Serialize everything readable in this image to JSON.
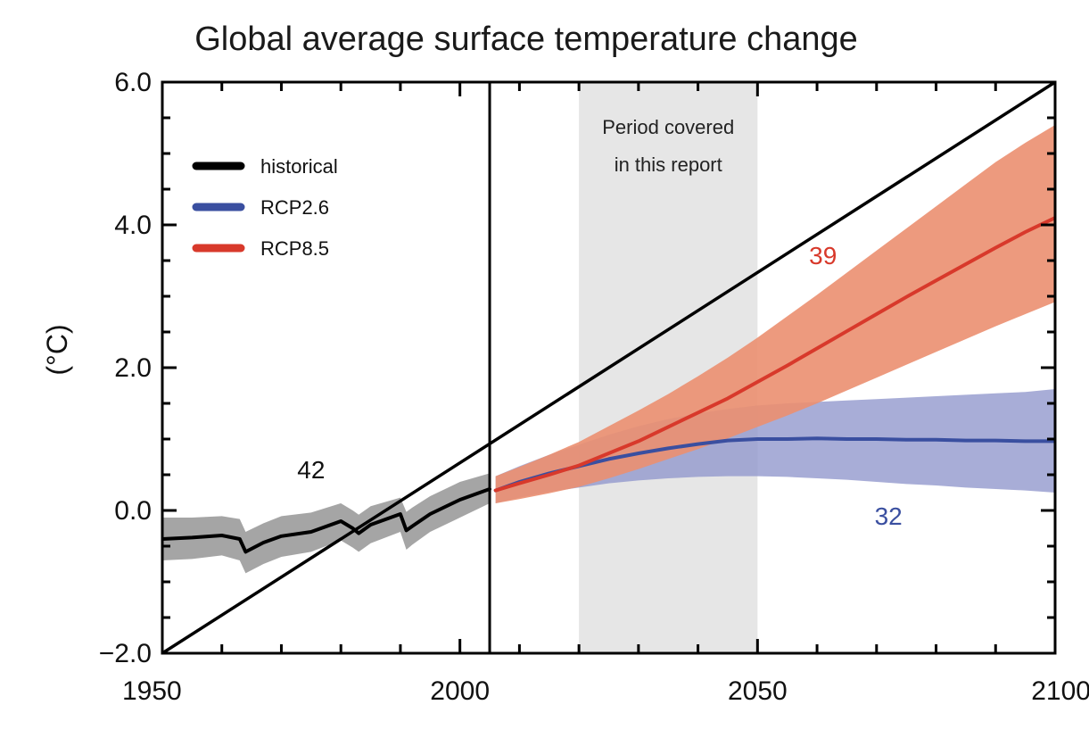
{
  "chart_data": {
    "type": "line",
    "title": "Global average surface temperature change",
    "ylabel": "(°C)",
    "xlabel": "",
    "xlim": [
      1950,
      2100
    ],
    "ylim": [
      -2.0,
      6.0
    ],
    "x_ticks": [
      1950,
      2000,
      2050,
      2100
    ],
    "y_ticks": [
      -2.0,
      0.0,
      2.0,
      4.0,
      6.0
    ],
    "y_tick_labels": [
      "−2.0",
      "0.0",
      "2.0",
      "4.0",
      "6.0"
    ],
    "x_tick_labels": [
      "1950",
      "2000",
      "2050",
      "2100"
    ],
    "legend": {
      "placement": "top-left",
      "entries": [
        {
          "name": "historical",
          "color": "#000000"
        },
        {
          "name": "RCP2.6",
          "color": "#3a4fa0"
        },
        {
          "name": "RCP8.5",
          "color": "#d8392b"
        }
      ]
    },
    "shaded_period": {
      "x_start": 2020,
      "x_end": 2050,
      "label_line1": "Period covered",
      "label_line2": "in this report",
      "color": "#e6e6e6"
    },
    "divider_year": 2005,
    "series": [
      {
        "name": "historical",
        "color": "#000000",
        "band_color": "#9b9b9b",
        "x": [
          1950,
          1955,
          1960,
          1963,
          1964,
          1967,
          1970,
          1975,
          1980,
          1982,
          1983,
          1985,
          1990,
          1991,
          1992,
          1995,
          2000,
          2005
        ],
        "y": [
          -0.4,
          -0.38,
          -0.35,
          -0.4,
          -0.58,
          -0.45,
          -0.36,
          -0.3,
          -0.15,
          -0.25,
          -0.32,
          -0.2,
          -0.05,
          -0.28,
          -0.22,
          -0.05,
          0.15,
          0.3
        ],
        "lower": [
          -0.7,
          -0.68,
          -0.63,
          -0.7,
          -0.88,
          -0.75,
          -0.65,
          -0.58,
          -0.42,
          -0.52,
          -0.58,
          -0.46,
          -0.3,
          -0.55,
          -0.48,
          -0.3,
          -0.1,
          0.1
        ],
        "upper": [
          -0.1,
          -0.1,
          -0.08,
          -0.12,
          -0.3,
          -0.18,
          -0.08,
          -0.03,
          0.1,
          0.0,
          -0.06,
          0.06,
          0.18,
          -0.02,
          0.04,
          0.2,
          0.4,
          0.52
        ],
        "annotation": {
          "text": "42",
          "x": 1975,
          "y": 0.45
        }
      },
      {
        "name": "RCP2.6",
        "color": "#3a4fa0",
        "band_color": "#8f96cc",
        "x": [
          2006,
          2010,
          2015,
          2020,
          2025,
          2030,
          2035,
          2040,
          2045,
          2050,
          2055,
          2060,
          2065,
          2070,
          2075,
          2080,
          2085,
          2090,
          2095,
          2100
        ],
        "y": [
          0.28,
          0.4,
          0.52,
          0.62,
          0.72,
          0.8,
          0.87,
          0.93,
          0.98,
          1.0,
          1.0,
          1.01,
          1.0,
          1.0,
          0.99,
          0.99,
          0.98,
          0.98,
          0.97,
          0.97
        ],
        "lower": [
          0.1,
          0.18,
          0.26,
          0.32,
          0.38,
          0.42,
          0.45,
          0.47,
          0.48,
          0.48,
          0.47,
          0.45,
          0.43,
          0.4,
          0.37,
          0.35,
          0.32,
          0.3,
          0.28,
          0.25
        ],
        "upper": [
          0.48,
          0.62,
          0.78,
          0.92,
          1.06,
          1.18,
          1.28,
          1.36,
          1.42,
          1.47,
          1.5,
          1.52,
          1.54,
          1.56,
          1.58,
          1.6,
          1.62,
          1.64,
          1.66,
          1.7
        ],
        "annotation": {
          "text": "32",
          "x": 2072,
          "y": -0.2
        }
      },
      {
        "name": "RCP8.5",
        "color": "#d8392b",
        "band_color": "#eb8f70",
        "x": [
          2006,
          2010,
          2015,
          2020,
          2025,
          2030,
          2035,
          2040,
          2045,
          2050,
          2055,
          2060,
          2065,
          2070,
          2075,
          2080,
          2085,
          2090,
          2095,
          2100
        ],
        "y": [
          0.28,
          0.38,
          0.5,
          0.63,
          0.8,
          0.97,
          1.17,
          1.37,
          1.57,
          1.8,
          2.03,
          2.27,
          2.51,
          2.75,
          2.99,
          3.22,
          3.45,
          3.68,
          3.9,
          4.1
        ],
        "lower": [
          0.1,
          0.16,
          0.24,
          0.33,
          0.45,
          0.58,
          0.72,
          0.86,
          1.01,
          1.17,
          1.33,
          1.5,
          1.68,
          1.86,
          2.04,
          2.22,
          2.4,
          2.58,
          2.75,
          2.92
        ],
        "upper": [
          0.48,
          0.61,
          0.78,
          0.96,
          1.18,
          1.4,
          1.63,
          1.88,
          2.14,
          2.42,
          2.72,
          3.02,
          3.33,
          3.64,
          3.95,
          4.26,
          4.57,
          4.88,
          5.15,
          5.4
        ],
        "annotation": {
          "text": "39",
          "x": 2061,
          "y": 3.45
        }
      },
      {
        "name": "",
        "color": "#000000",
        "x": [
          1950,
          2100
        ],
        "y": [
          -2.0,
          6.0
        ]
      }
    ]
  }
}
